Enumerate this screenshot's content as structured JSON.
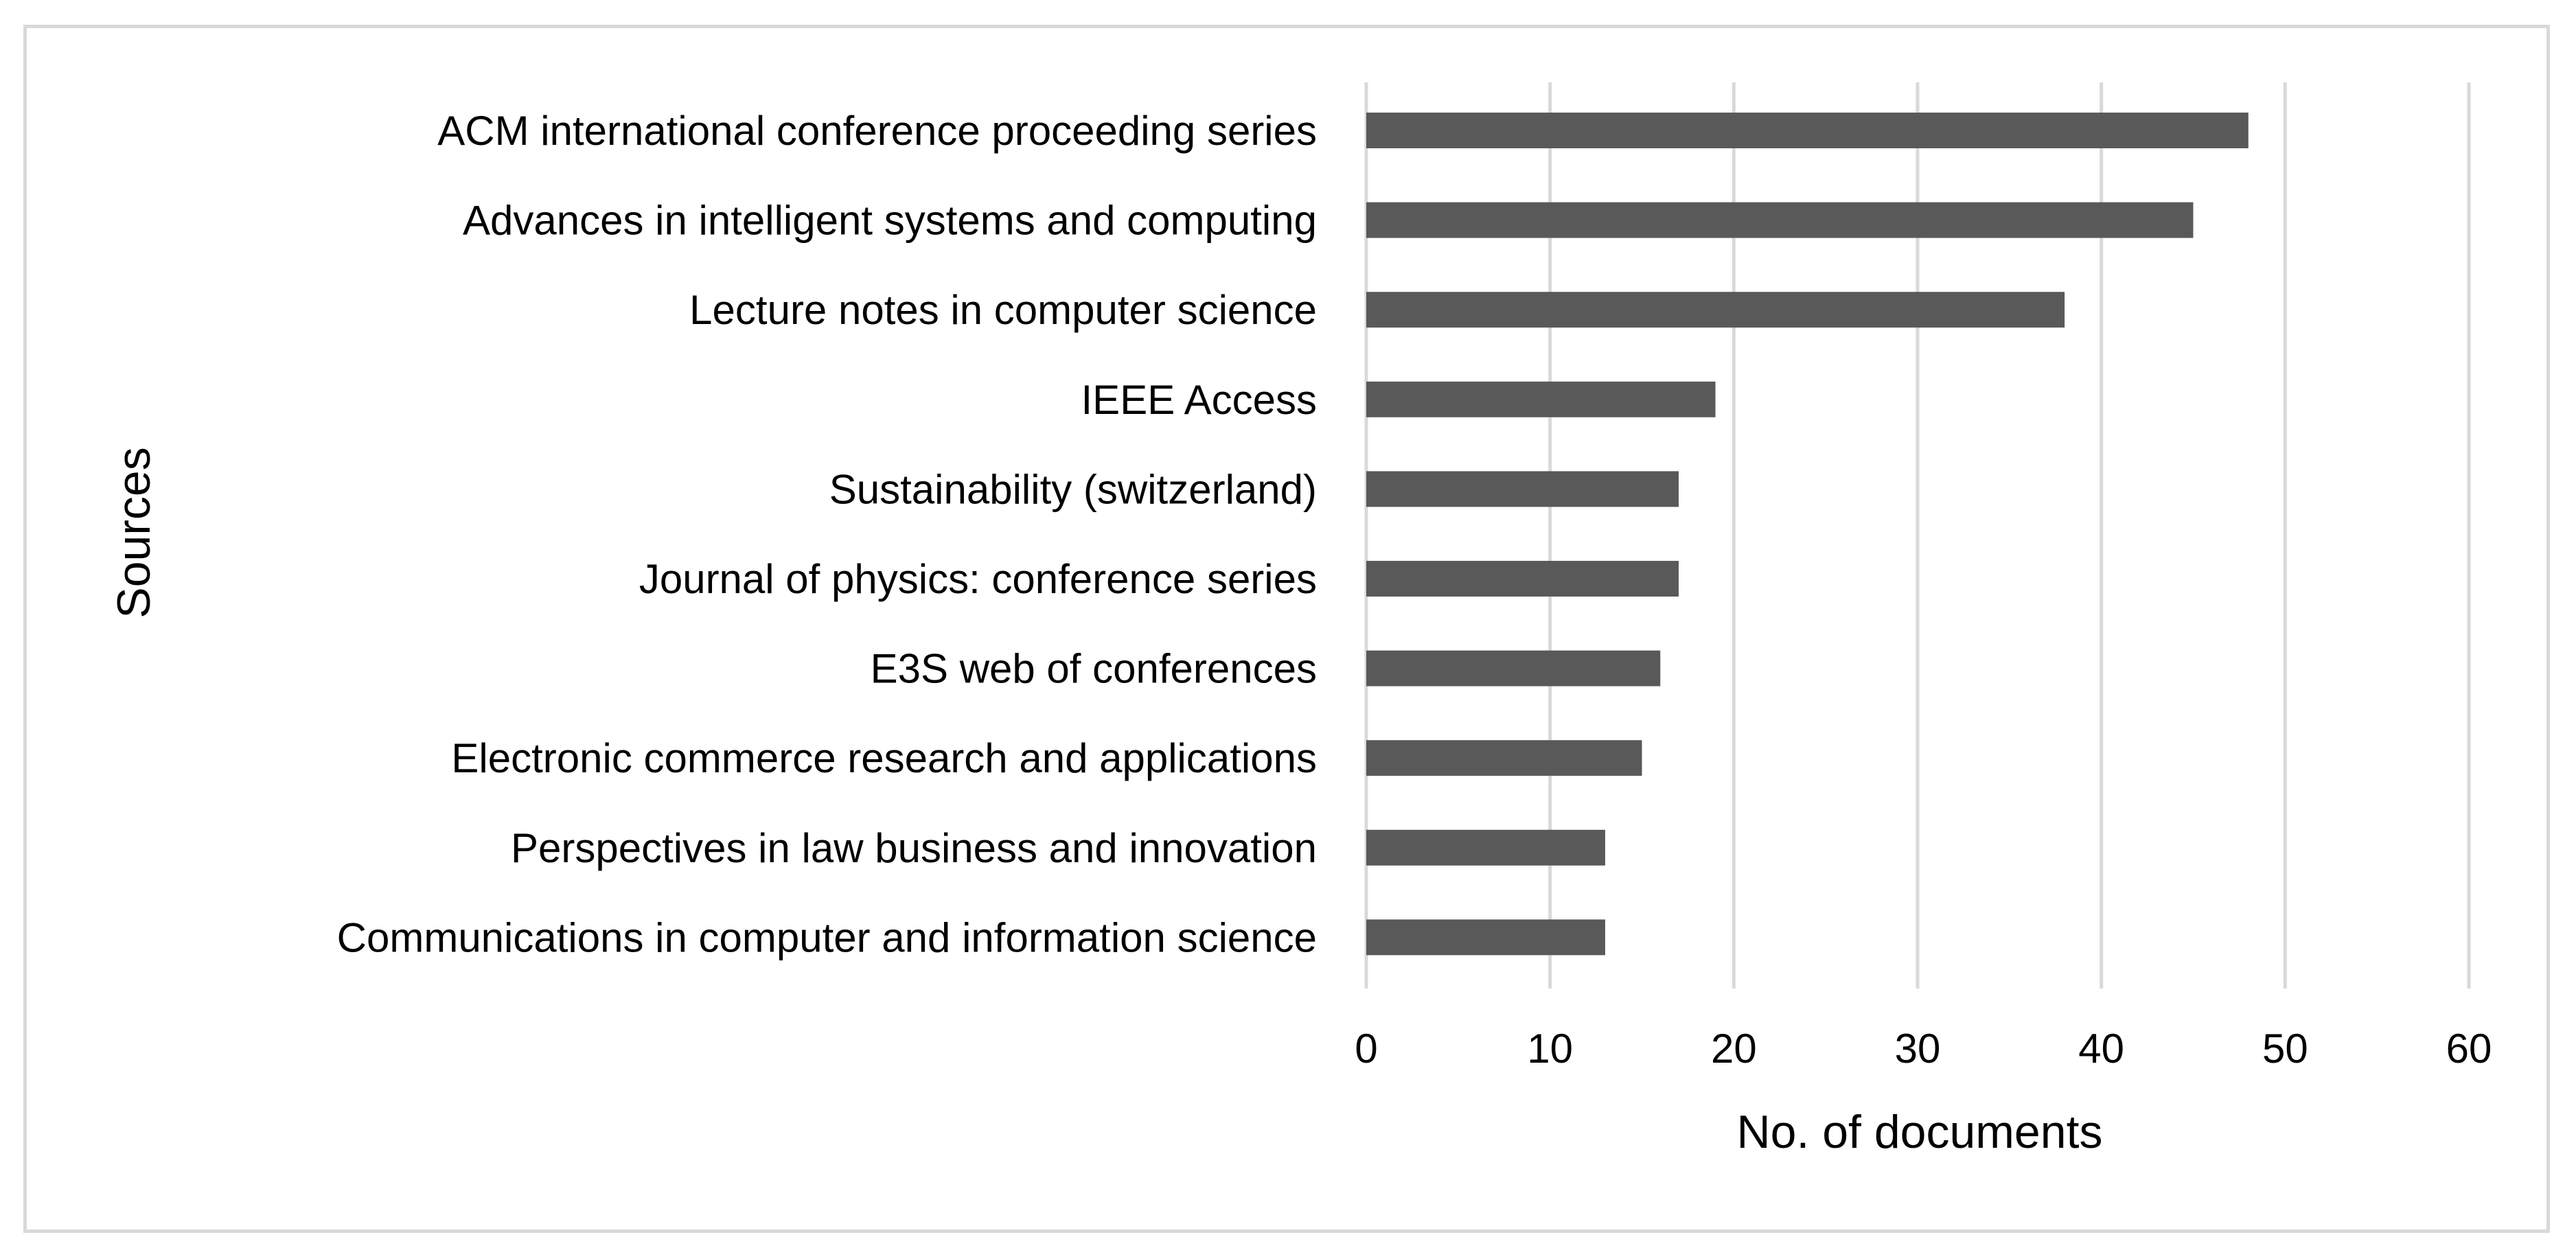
{
  "chart_data": {
    "type": "bar",
    "orientation": "horizontal",
    "title": "",
    "categories": [
      "ACM international conference proceeding series",
      "Advances in intelligent systems and computing",
      "Lecture notes in computer science",
      "IEEE Access",
      "Sustainability (switzerland)",
      "Journal of physics: conference series",
      "E3S web of conferences",
      "Electronic commerce research and applications",
      "Perspectives in law business and innovation",
      "Communications in computer and information science"
    ],
    "values": [
      48,
      45,
      38,
      19,
      17,
      17,
      16,
      15,
      13,
      13
    ],
    "xlabel": "No. of documents",
    "ylabel": "Sources",
    "xlim": [
      0,
      60
    ],
    "xticks": [
      0,
      10,
      20,
      30,
      40,
      50,
      60
    ],
    "tick_labels": [
      "0",
      "10",
      "20",
      "30",
      "40",
      "50",
      "60"
    ],
    "grid": true,
    "bar_color": "#595959",
    "grid_color": "#d9d9d9"
  }
}
